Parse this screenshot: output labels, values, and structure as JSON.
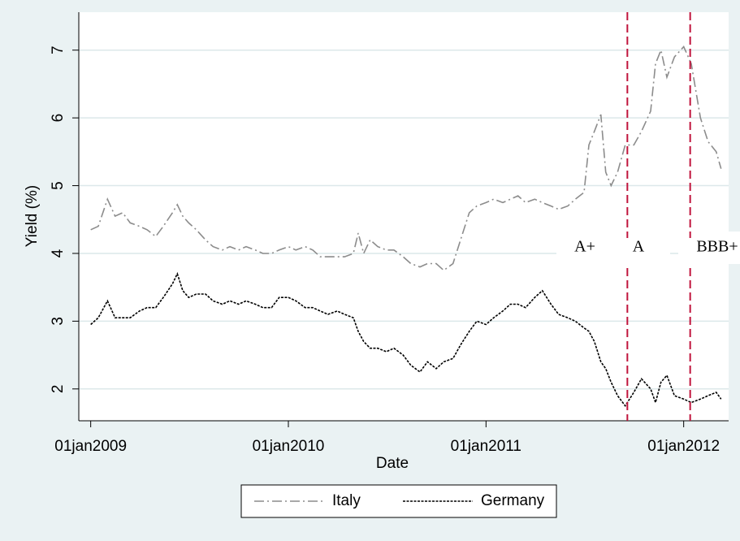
{
  "chart_data": {
    "type": "line",
    "x_label": "Date",
    "y_label": "Yield (%)",
    "x": [
      "2009-01-01",
      "2009-01-15",
      "2009-02-01",
      "2009-02-15",
      "2009-03-01",
      "2009-03-15",
      "2009-04-01",
      "2009-04-15",
      "2009-05-01",
      "2009-05-15",
      "2009-06-01",
      "2009-06-10",
      "2009-06-20",
      "2009-07-01",
      "2009-07-15",
      "2009-08-01",
      "2009-08-15",
      "2009-09-01",
      "2009-09-15",
      "2009-10-01",
      "2009-10-15",
      "2009-11-01",
      "2009-11-15",
      "2009-12-01",
      "2009-12-15",
      "2010-01-01",
      "2010-01-15",
      "2010-02-01",
      "2010-02-15",
      "2010-03-01",
      "2010-03-15",
      "2010-04-01",
      "2010-04-15",
      "2010-05-01",
      "2010-05-10",
      "2010-05-20",
      "2010-06-01",
      "2010-06-15",
      "2010-07-01",
      "2010-07-15",
      "2010-08-01",
      "2010-08-15",
      "2010-09-01",
      "2010-09-15",
      "2010-10-01",
      "2010-10-15",
      "2010-11-01",
      "2010-11-15",
      "2010-12-01",
      "2010-12-15",
      "2011-01-01",
      "2011-01-15",
      "2011-02-01",
      "2011-02-15",
      "2011-03-01",
      "2011-03-15",
      "2011-04-01",
      "2011-04-15",
      "2011-05-01",
      "2011-05-15",
      "2011-06-01",
      "2011-06-15",
      "2011-07-01",
      "2011-07-10",
      "2011-07-20",
      "2011-08-01",
      "2011-08-10",
      "2011-08-20",
      "2011-09-01",
      "2011-09-15",
      "2011-10-01",
      "2011-10-15",
      "2011-11-01",
      "2011-11-10",
      "2011-11-20",
      "2011-12-01",
      "2011-12-15",
      "2012-01-01",
      "2012-01-15",
      "2012-02-01",
      "2012-02-15",
      "2012-03-01",
      "2012-03-10"
    ],
    "series": [
      {
        "name": "Italy",
        "color": "#8c8c8c",
        "line_style": "dash-dot",
        "values": [
          4.35,
          4.4,
          4.8,
          4.55,
          4.6,
          4.45,
          4.4,
          4.35,
          4.25,
          4.4,
          4.6,
          4.72,
          4.55,
          4.45,
          4.35,
          4.2,
          4.1,
          4.05,
          4.1,
          4.05,
          4.1,
          4.05,
          4.0,
          4.0,
          4.05,
          4.1,
          4.05,
          4.1,
          4.05,
          3.95,
          3.95,
          3.95,
          3.95,
          4.0,
          4.3,
          4.0,
          4.2,
          4.1,
          4.05,
          4.05,
          3.95,
          3.85,
          3.8,
          3.85,
          3.85,
          3.75,
          3.85,
          4.2,
          4.6,
          4.7,
          4.75,
          4.8,
          4.75,
          4.8,
          4.85,
          4.75,
          4.8,
          4.75,
          4.7,
          4.65,
          4.7,
          4.8,
          4.9,
          5.6,
          5.8,
          6.05,
          5.2,
          5.0,
          5.2,
          5.6,
          5.6,
          5.8,
          6.1,
          6.8,
          7.0,
          6.6,
          6.9,
          7.05,
          6.8,
          6.0,
          5.65,
          5.5,
          5.25
        ]
      },
      {
        "name": "Germany",
        "color": "#000000",
        "line_style": "dotted",
        "values": [
          2.95,
          3.05,
          3.3,
          3.05,
          3.05,
          3.05,
          3.15,
          3.2,
          3.2,
          3.35,
          3.55,
          3.7,
          3.45,
          3.35,
          3.4,
          3.4,
          3.3,
          3.25,
          3.3,
          3.25,
          3.3,
          3.25,
          3.2,
          3.2,
          3.35,
          3.35,
          3.3,
          3.2,
          3.2,
          3.15,
          3.1,
          3.15,
          3.1,
          3.05,
          2.85,
          2.7,
          2.6,
          2.6,
          2.55,
          2.6,
          2.5,
          2.35,
          2.25,
          2.4,
          2.3,
          2.4,
          2.45,
          2.65,
          2.85,
          3.0,
          2.95,
          3.05,
          3.15,
          3.25,
          3.25,
          3.2,
          3.35,
          3.45,
          3.25,
          3.1,
          3.05,
          3.0,
          2.9,
          2.85,
          2.7,
          2.4,
          2.3,
          2.1,
          1.9,
          1.75,
          1.95,
          2.15,
          2.0,
          1.8,
          2.1,
          2.2,
          1.9,
          1.85,
          1.8,
          1.85,
          1.9,
          1.95,
          1.85
        ]
      }
    ],
    "xlim": [
      "2008-12-10",
      "2012-03-24"
    ],
    "xticks": [
      {
        "value": "2009-01-01",
        "label": "01jan2009"
      },
      {
        "value": "2010-01-01",
        "label": "01jan2010"
      },
      {
        "value": "2011-01-01",
        "label": "01jan2011"
      },
      {
        "value": "2012-01-01",
        "label": "01jan2012"
      }
    ],
    "ylim": [
      1.53,
      7.56
    ],
    "yticks": [
      2,
      3,
      4,
      5,
      6,
      7
    ],
    "grid": true,
    "downgrades": {
      "dates": [
        "2011-09-19",
        "2012-01-13"
      ],
      "color": "#c0143c"
    },
    "ratings": [
      "A+",
      "A",
      "BBB+"
    ],
    "legend": "bottom"
  }
}
